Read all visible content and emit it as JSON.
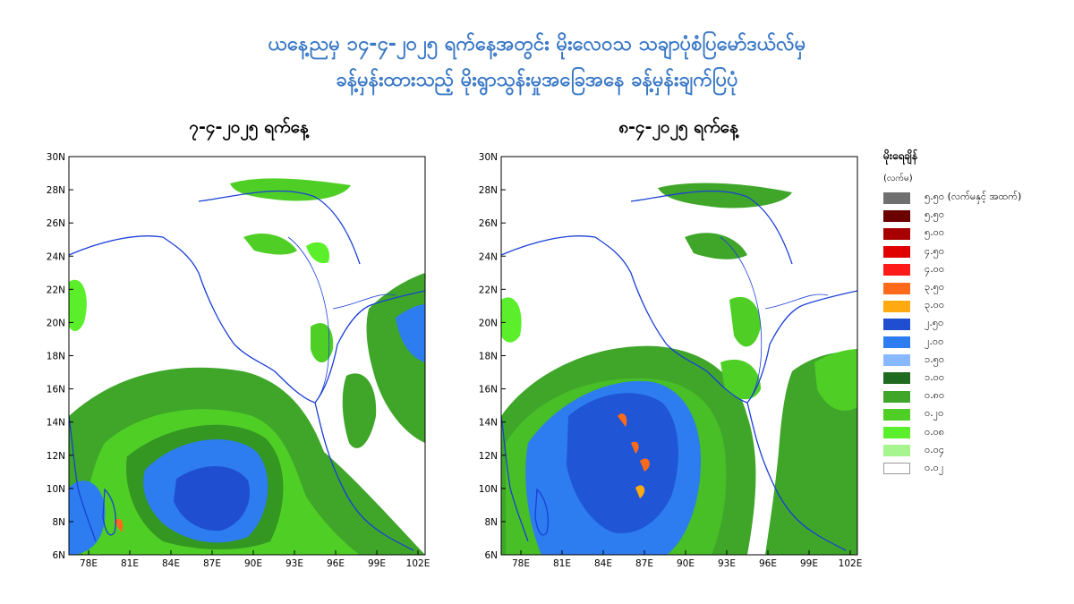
{
  "title": {
    "line1": "ယနေ့ညမှ ၁၄-၄-၂၀၂၅ ရက်နေ့အတွင်း မိုးလေဝသ သချာပုံစံပြမော်ဒယ်လ်မှ",
    "line2": "ခန့်မှန်းထားသည့် မိုးရွာသွန်းမှုအခြေအနေ ခန့်မှန်းချက်ပြပုံ"
  },
  "maps": [
    {
      "title": "၇-၄-၂၀၂၅ ရက်နေ့"
    },
    {
      "title": "၈-၄-၂၀၂၅ ရက်နေ့"
    }
  ],
  "axes": {
    "x_ticks": [
      "78E",
      "81E",
      "84E",
      "87E",
      "90E",
      "93E",
      "96E",
      "99E",
      "102E"
    ],
    "y_ticks": [
      "30N",
      "28N",
      "26N",
      "24N",
      "22N",
      "20N",
      "18N",
      "16N",
      "14N",
      "12N",
      "10N",
      "8N",
      "6N"
    ]
  },
  "legend": {
    "title": "မိုးရေချိန်",
    "unit": "(လက်မ)",
    "items": [
      {
        "label": "၅.၅၀ (လက်မနှင့် အထက်)",
        "color": "#707070"
      },
      {
        "label": "၅.၅၀",
        "color": "#6b0000"
      },
      {
        "label": "၅.၀၀",
        "color": "#a80000"
      },
      {
        "label": "၄.၅၀",
        "color": "#e00000"
      },
      {
        "label": "၄.၀၀",
        "color": "#ff1a1a"
      },
      {
        "label": "၃.၅၀",
        "color": "#ff6a1a"
      },
      {
        "label": "၃.၀၀",
        "color": "#ffaa10"
      },
      {
        "label": "၂.၅၀",
        "color": "#1f4fd0"
      },
      {
        "label": "၂.၀၀",
        "color": "#2d7cf0"
      },
      {
        "label": "၁.၅၀",
        "color": "#88b8ff"
      },
      {
        "label": "၁.၀၀",
        "color": "#1e6a1e"
      },
      {
        "label": "၀.၈၀",
        "color": "#3fa62a"
      },
      {
        "label": "၀.၂၀",
        "color": "#4fcf26"
      },
      {
        "label": "၀.၀၈",
        "color": "#5aef2a"
      },
      {
        "label": "၀.၀၄",
        "color": "#a6f58e"
      },
      {
        "label": "၀.၀၂",
        "color": "#ffffff"
      }
    ]
  }
}
